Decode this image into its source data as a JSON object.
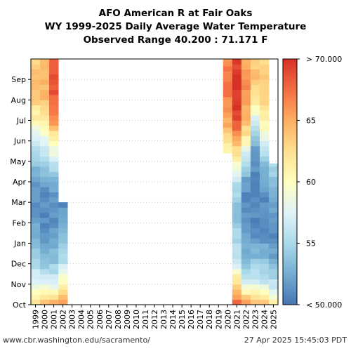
{
  "chart_data": {
    "type": "heatmap",
    "title_lines": [
      "AFO American R at Fair Oaks",
      "WY 1999-2025 Daily Average Water Temperature",
      "Observed Range 40.200 : 71.171 F"
    ],
    "x_categories": [
      "1999",
      "2000",
      "2001",
      "2002",
      "2003",
      "2004",
      "2005",
      "2006",
      "2007",
      "2008",
      "2009",
      "2010",
      "2011",
      "2012",
      "2013",
      "2014",
      "2015",
      "2016",
      "2017",
      "2018",
      "2019",
      "2020",
      "2021",
      "2022",
      "2023",
      "2024",
      "2025"
    ],
    "y_months": [
      "Oct",
      "Nov",
      "Dec",
      "Jan",
      "Feb",
      "Mar",
      "Apr",
      "May",
      "Jun",
      "Jul",
      "Aug",
      "Sep"
    ],
    "colorbar": {
      "min": 50,
      "max": 70,
      "ticks": [
        "< 50.000",
        "55",
        "60",
        "65",
        "> 70.000"
      ]
    },
    "year_profiles": {
      "1999": {
        "range": [
          0,
          12
        ],
        "vals": [
          62,
          58,
          55,
          53,
          52,
          51,
          52,
          54,
          57,
          61,
          63,
          64,
          63
        ]
      },
      "2000": {
        "range": [
          0,
          12
        ],
        "vals": [
          64,
          58,
          54,
          52,
          51,
          51,
          52,
          55,
          58,
          62,
          64,
          65,
          64
        ]
      },
      "2001": {
        "range": [
          0,
          12
        ],
        "vals": [
          65,
          58,
          54,
          52,
          51,
          51,
          53,
          57,
          60,
          66,
          68,
          69,
          67
        ]
      },
      "2002": {
        "range": [
          0,
          5
        ],
        "vals": [
          67,
          61,
          56,
          54,
          52,
          51
        ]
      },
      "2020": {
        "range": [
          7.4,
          12
        ],
        "vals": [
          60,
          64,
          66,
          67,
          67,
          66
        ]
      },
      "2021": {
        "range": [
          0,
          12
        ],
        "vals": [
          68,
          63,
          57,
          55,
          54,
          54,
          56,
          60,
          65,
          69,
          70,
          70,
          69
        ]
      },
      "2022": {
        "range": [
          0,
          12
        ],
        "vals": [
          66,
          58,
          54,
          52,
          51,
          51,
          52,
          55,
          61,
          64,
          66,
          66,
          65
        ]
      },
      "2023": {
        "range": [
          0,
          12
        ],
        "vals": [
          64,
          58,
          54,
          52,
          51,
          51,
          51,
          51,
          53,
          57,
          62,
          64,
          63
        ]
      },
      "2024": {
        "range": [
          0,
          12
        ],
        "vals": [
          64,
          57,
          54,
          52,
          51,
          51,
          52,
          54,
          58,
          61,
          63,
          64,
          63
        ]
      },
      "2025": {
        "range": [
          0,
          6.9
        ],
        "vals": [
          61,
          56,
          53,
          51,
          51,
          52,
          54,
          55
        ]
      }
    }
  },
  "footer": {
    "source": "www.cbr.washington.edu/sacramento/",
    "timestamp": "27 Apr 2025 15:45:03 PDT"
  }
}
